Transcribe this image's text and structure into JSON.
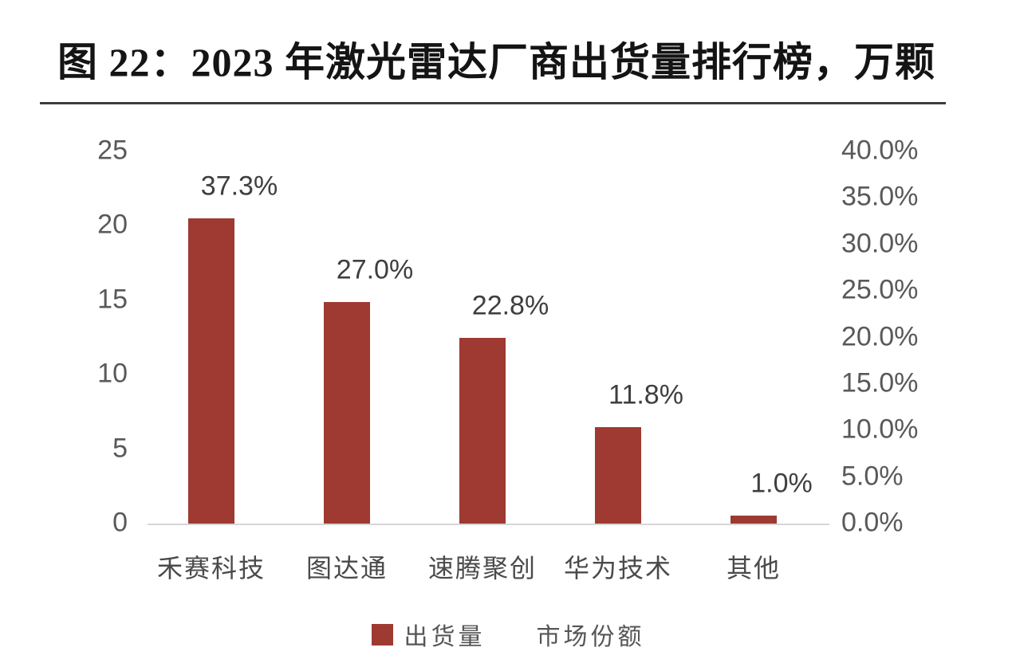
{
  "figure": {
    "title": "图 22：2023 年激光雷达厂商出货量排行榜，万颗"
  },
  "chart_data": {
    "type": "bar",
    "title": "图 22：2023 年激光雷达厂商出货量排行榜，万颗",
    "unit": "万颗",
    "categories": [
      "禾赛科技",
      "图达通",
      "速腾聚创",
      "华为技术",
      "其他"
    ],
    "series": [
      {
        "name": "出货量",
        "type": "bar",
        "axis": "left",
        "values": [
          20.5,
          14.9,
          12.5,
          6.5,
          0.55
        ]
      },
      {
        "name": "市场份额",
        "type": "labels",
        "axis": "right",
        "values": [
          37.3,
          27.0,
          22.8,
          11.8,
          1.0
        ],
        "labels": [
          "37.3%",
          "27.0%",
          "22.8%",
          "11.8%",
          "1.0%"
        ]
      }
    ],
    "left_axis": {
      "min": 0,
      "max": 25,
      "ticks": [
        "25",
        "20",
        "15",
        "10",
        "5",
        "0"
      ]
    },
    "right_axis": {
      "min": 0,
      "max": 40,
      "ticks": [
        "40.0%",
        "35.0%",
        "30.0%",
        "25.0%",
        "20.0%",
        "15.0%",
        "10.0%",
        "5.0%",
        "0.0%"
      ]
    },
    "legend": [
      {
        "label": "出货量",
        "swatch": "#9E3A31"
      },
      {
        "label": "市场份额",
        "swatch": null
      }
    ],
    "colors": {
      "bar": "#9E3A31",
      "axis_text": "#595959",
      "data_label": "#3F3F3F",
      "category_text": "#4A4A4A",
      "baseline": "#D6D6D6",
      "title_text": "#141414",
      "rule": "#3D3D3D"
    },
    "grid": false,
    "legend_position": "bottom"
  }
}
